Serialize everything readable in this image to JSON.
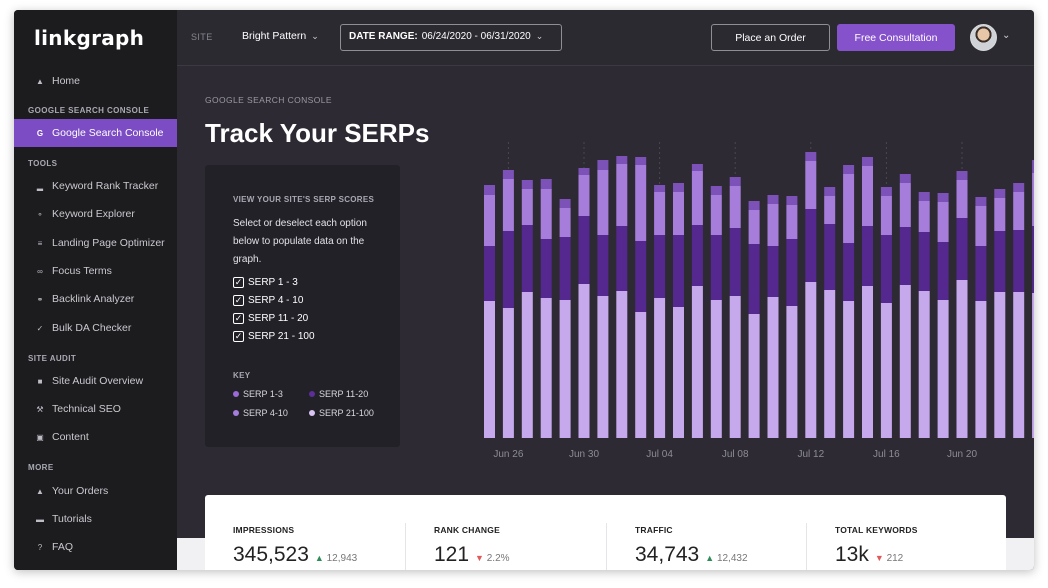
{
  "brand": {
    "logo": "linkgraph"
  },
  "sidebar": {
    "home": {
      "label": "Home",
      "icon": "home-icon"
    },
    "sections": [
      {
        "title": "GOOGLE SEARCH CONSOLE",
        "items": [
          {
            "label": "Google Search Console",
            "icon": "google-icon",
            "active": true
          }
        ]
      },
      {
        "title": "TOOLS",
        "items": [
          {
            "label": "Keyword Rank Tracker",
            "icon": "bar-chart-icon"
          },
          {
            "label": "Keyword Explorer",
            "icon": "key-icon"
          },
          {
            "label": "Landing Page Optimizer",
            "icon": "list-icon"
          },
          {
            "label": "Focus Terms",
            "icon": "glasses-icon"
          },
          {
            "label": "Backlink Analyzer",
            "icon": "link-icon"
          },
          {
            "label": "Bulk DA Checker",
            "icon": "check-icon"
          }
        ]
      },
      {
        "title": "SITE AUDIT",
        "items": [
          {
            "label": "Site Audit Overview",
            "icon": "document-icon"
          },
          {
            "label": "Technical SEO",
            "icon": "wrench-icon"
          },
          {
            "label": "Content",
            "icon": "content-icon"
          }
        ]
      },
      {
        "title": "MORE",
        "items": [
          {
            "label": "Your Orders",
            "icon": "bag-icon"
          },
          {
            "label": "Tutorials",
            "icon": "monitor-icon"
          },
          {
            "label": "FAQ",
            "icon": "question-icon"
          }
        ]
      }
    ]
  },
  "topbar": {
    "site_label": "SITE",
    "site_value": "Bright Pattern",
    "date_label": "DATE RANGE:",
    "date_value": "06/24/2020 - 06/31/2020",
    "place_order": "Place an Order",
    "free_consultation": "Free Consultation"
  },
  "main": {
    "breadcrumb": "GOOGLE SEARCH CONSOLE",
    "title": "Track Your SERPs"
  },
  "panel": {
    "heading": "VIEW YOUR SITE'S SERP SCORES",
    "description": "Select or deselect each option below to populate data on the graph.",
    "options": [
      {
        "label": "SERP 1 - 3",
        "checked": true
      },
      {
        "label": "SERP 4 - 10",
        "checked": true
      },
      {
        "label": "SERP 11 - 20",
        "checked": true
      },
      {
        "label": "SERP 21 - 100",
        "checked": true
      }
    ],
    "key_heading": "KEY",
    "key": [
      {
        "label": "SERP 1-3",
        "color": "#9b6ad6"
      },
      {
        "label": "SERP 11-20",
        "color": "#5b2e9a"
      },
      {
        "label": "SERP 4-10",
        "color": "#a57ddc"
      },
      {
        "label": "SERP 21-100",
        "color": "#d9c4f3"
      }
    ]
  },
  "chart_data": {
    "type": "bar",
    "stacked": true,
    "x_ticks": [
      "Jun 26",
      "Jun 30",
      "Jul 04",
      "Jul 08",
      "Jul 12",
      "Jul 16",
      "Jun 20"
    ],
    "series": [
      {
        "name": "SERP 21-100",
        "color": "#c6a8ec",
        "values": [
          137,
          130,
          146,
          140,
          138,
          154,
          142,
          147,
          126,
          140,
          131,
          152,
          138,
          142,
          124,
          141,
          132,
          156,
          148,
          137,
          152,
          135,
          153,
          147,
          138,
          158,
          137,
          146,
          146,
          145
        ]
      },
      {
        "name": "SERP 11-20",
        "color": "#54288f",
        "values": [
          55,
          77,
          67,
          59,
          63,
          68,
          61,
          65,
          71,
          63,
          72,
          61,
          65,
          68,
          70,
          51,
          67,
          73,
          66,
          58,
          60,
          68,
          58,
          59,
          58,
          62,
          55,
          61,
          62,
          67
        ]
      },
      {
        "name": "SERP 4-10",
        "color": "#a67ddb",
        "values": [
          51,
          52,
          36,
          50,
          29,
          41,
          65,
          62,
          76,
          43,
          43,
          54,
          40,
          42,
          34,
          42,
          34,
          48,
          28,
          69,
          60,
          39,
          44,
          31,
          40,
          38,
          40,
          33,
          38,
          53
        ]
      },
      {
        "name": "SERP 1-3",
        "color": "#7d52b8",
        "values": [
          10,
          9,
          9,
          10,
          9,
          7,
          10,
          8,
          8,
          7,
          9,
          7,
          9,
          9,
          9,
          9,
          9,
          9,
          9,
          9,
          9,
          9,
          9,
          9,
          9,
          9,
          9,
          9,
          9,
          13
        ]
      }
    ],
    "ylim": [
      0,
      283
    ]
  },
  "stats": [
    {
      "label": "IMPRESSIONS",
      "value": "345,523",
      "delta": "12,943",
      "direction": "up"
    },
    {
      "label": "RANK CHANGE",
      "value": "121",
      "delta": "2.2%",
      "direction": "down"
    },
    {
      "label": "TRAFFIC",
      "value": "34,743",
      "delta": "12,432",
      "direction": "up"
    },
    {
      "label": "TOTAL KEYWORDS",
      "value": "13k",
      "delta": "212",
      "direction": "down"
    }
  ]
}
